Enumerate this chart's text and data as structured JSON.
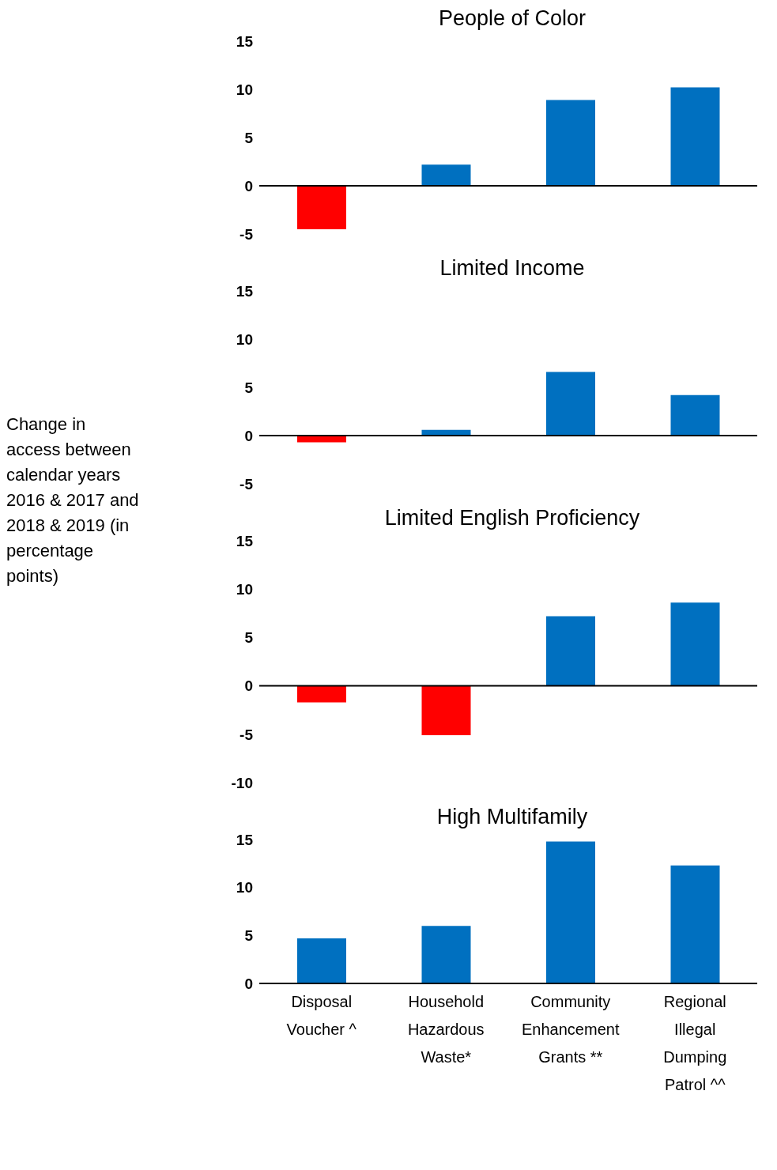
{
  "chart_data": [
    {
      "type": "bar",
      "title": "People of Color",
      "categories": [
        null,
        null,
        null,
        null
      ],
      "values": [
        -4.5,
        2.2,
        8.9,
        10.2
      ],
      "colors": [
        "#ff0000",
        "#0070c0",
        "#0070c0",
        "#0070c0"
      ],
      "ylim": [
        -5,
        15
      ],
      "yticks": [
        -5,
        0,
        5,
        10,
        15
      ],
      "tick_labels": "y"
    },
    {
      "type": "bar",
      "title": "Limited Income",
      "ylabel": "Change in access between calendar years 2016 & 2017 and 2018 & 2019 (in percentage points)",
      "categories": [
        null,
        null,
        null,
        null
      ],
      "values": [
        -0.7,
        0.6,
        6.6,
        4.2
      ],
      "colors": [
        "#ff0000",
        "#0070c0",
        "#0070c0",
        "#0070c0"
      ],
      "ylim": [
        -5,
        15
      ],
      "yticks": [
        -5,
        0,
        5,
        10,
        15
      ],
      "tick_labels": "y"
    },
    {
      "type": "bar",
      "title": "Limited English Proficiency",
      "categories": [
        null,
        null,
        null,
        null
      ],
      "values": [
        -1.7,
        -5.1,
        7.2,
        8.6
      ],
      "colors": [
        "#ff0000",
        "#ff0000",
        "#0070c0",
        "#0070c0"
      ],
      "ylim": [
        -10,
        15
      ],
      "yticks": [
        -10,
        -5,
        0,
        5,
        10,
        15
      ],
      "tick_labels": "y"
    },
    {
      "type": "bar",
      "title": "High Multifamily",
      "categories": [
        "Disposal Voucher ^",
        "Household Hazardous Waste*",
        "Community Enhancement Grants **",
        "Regional Illegal Dumping Patrol ^^"
      ],
      "values": [
        4.7,
        6.0,
        14.8,
        12.3
      ],
      "colors": [
        "#0070c0",
        "#0070c0",
        "#0070c0",
        "#0070c0"
      ],
      "ylim": [
        0,
        15
      ],
      "yticks": [
        0,
        5,
        10,
        15
      ]
    }
  ]
}
